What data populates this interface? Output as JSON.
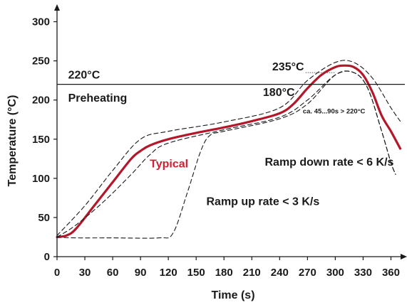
{
  "chart_data": {
    "type": "line",
    "title": "",
    "xlabel": "Time (s)",
    "ylabel": "Temperature (°C)",
    "xlim": [
      0,
      375
    ],
    "ylim": [
      0,
      315
    ],
    "x_ticks": [
      0,
      30,
      60,
      90,
      120,
      150,
      180,
      210,
      240,
      270,
      300,
      330,
      360
    ],
    "y_ticks": [
      0,
      50,
      100,
      150,
      200,
      250,
      300
    ],
    "grid": false,
    "reference_lines": [
      {
        "y": 220,
        "label": "220°C"
      }
    ],
    "series": [
      {
        "name": "Typical",
        "color": "#b3172a",
        "style": "solid",
        "points": [
          [
            0,
            25
          ],
          [
            10,
            27
          ],
          [
            20,
            35
          ],
          [
            40,
            65
          ],
          [
            60,
            95
          ],
          [
            80,
            125
          ],
          [
            90,
            135
          ],
          [
            100,
            142
          ],
          [
            120,
            150
          ],
          [
            150,
            158
          ],
          [
            180,
            165
          ],
          [
            210,
            173
          ],
          [
            240,
            183
          ],
          [
            255,
            195
          ],
          [
            270,
            215
          ],
          [
            285,
            232
          ],
          [
            300,
            242
          ],
          [
            310,
            244
          ],
          [
            320,
            242
          ],
          [
            330,
            232
          ],
          [
            340,
            210
          ],
          [
            350,
            180
          ],
          [
            360,
            160
          ],
          [
            370,
            138
          ]
        ]
      },
      {
        "name": "",
        "color": "#1a1a1a",
        "style": "dashed",
        "points": [
          [
            0,
            27
          ],
          [
            30,
            65
          ],
          [
            60,
            110
          ],
          [
            90,
            150
          ],
          [
            120,
            160
          ],
          [
            180,
            172
          ],
          [
            240,
            190
          ],
          [
            270,
            225
          ],
          [
            300,
            248
          ],
          [
            320,
            248
          ],
          [
            340,
            228
          ],
          [
            360,
            190
          ],
          [
            370,
            173
          ]
        ]
      },
      {
        "name": "",
        "color": "#1a1a1a",
        "style": "dashed",
        "points": [
          [
            0,
            25
          ],
          [
            20,
            40
          ],
          [
            50,
            70
          ],
          [
            80,
            105
          ],
          [
            100,
            130
          ],
          [
            120,
            145
          ],
          [
            180,
            162
          ],
          [
            240,
            178
          ],
          [
            270,
            200
          ],
          [
            300,
            232
          ],
          [
            320,
            235
          ],
          [
            335,
            215
          ],
          [
            350,
            160
          ],
          [
            360,
            120
          ],
          [
            365,
            105
          ]
        ]
      },
      {
        "name": "",
        "color": "#1a1a1a",
        "style": "dashed",
        "points": [
          [
            0,
            25
          ],
          [
            20,
            24
          ],
          [
            60,
            24
          ],
          [
            110,
            24
          ],
          [
            125,
            30
          ],
          [
            140,
            80
          ],
          [
            155,
            135
          ],
          [
            165,
            155
          ],
          [
            180,
            160
          ],
          [
            240,
            176
          ],
          [
            270,
            195
          ],
          [
            300,
            232
          ],
          [
            320,
            235
          ],
          [
            335,
            215
          ],
          [
            350,
            160
          ],
          [
            360,
            120
          ],
          [
            365,
            105
          ]
        ]
      }
    ],
    "annotations": [
      {
        "text": "Preheating",
        "x": 12,
        "y": 198,
        "color": "#1a1a1a"
      },
      {
        "text": "Typical",
        "x": 100,
        "y": 114,
        "color": "#cc2233"
      },
      {
        "text": "180°C",
        "x": 222,
        "y": 205,
        "color": "#1a1a1a"
      },
      {
        "text": "235°C",
        "x": 232,
        "y": 238,
        "color": "#1a1a1a"
      },
      {
        "text": "ca. 45...90s > 220°C",
        "x": 265,
        "y": 183,
        "color": "#1a1a1a"
      },
      {
        "text": "Ramp down rate < 6 K/s",
        "x": 224,
        "y": 116,
        "color": "#1a1a1a"
      },
      {
        "text": "Ramp up rate < 3 K/s",
        "x": 161,
        "y": 66,
        "color": "#1a1a1a"
      }
    ]
  }
}
